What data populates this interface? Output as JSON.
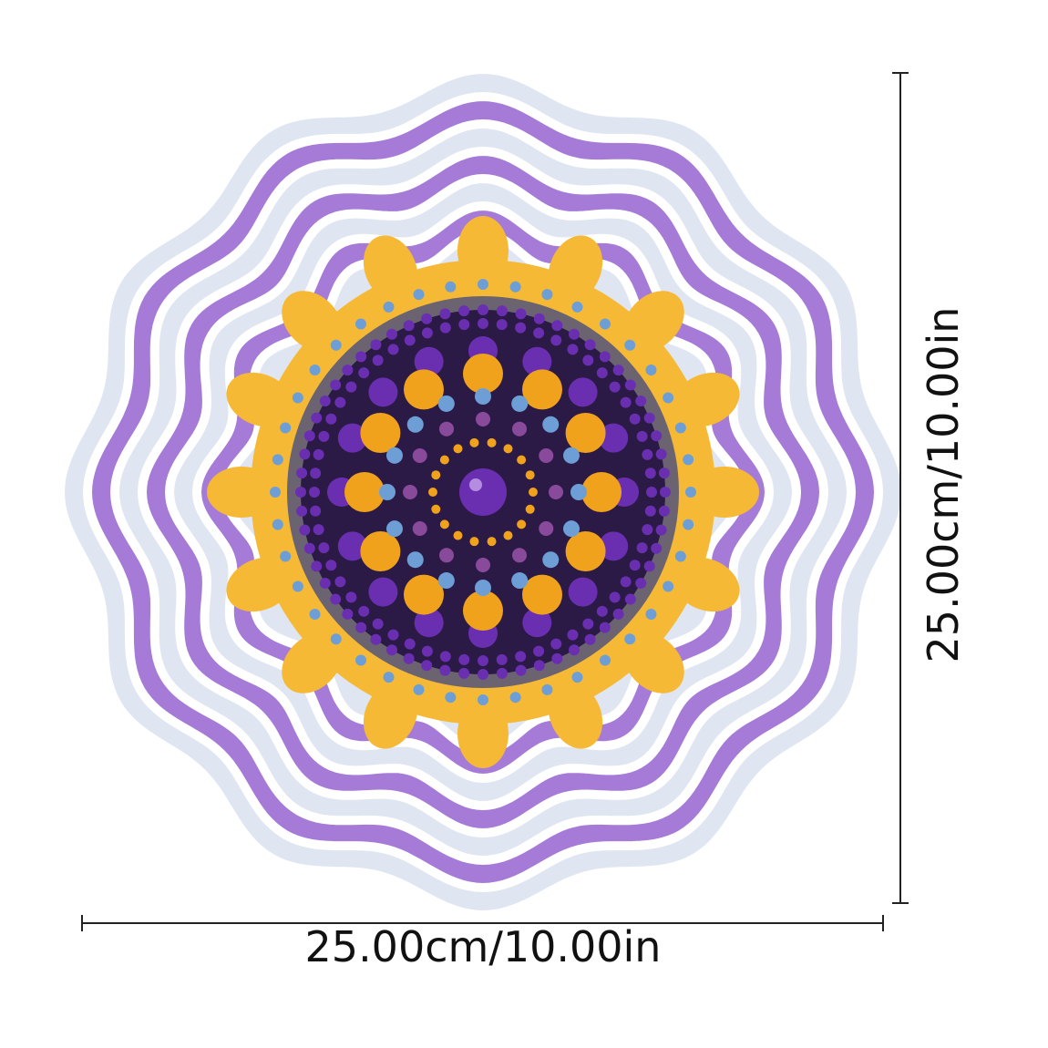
{
  "product": {
    "type": "mandala wind spinner",
    "colors": {
      "purple": "#6a2fb0",
      "lavender": "#a67bd8",
      "orange": "#f0a21c",
      "yellow": "#f5b935",
      "blue": "#6d9fd6",
      "dark": "#2a1a45"
    }
  },
  "dimensions": {
    "width_label": "25.00cm/10.00in",
    "height_label": "25.00cm/10.00in"
  }
}
